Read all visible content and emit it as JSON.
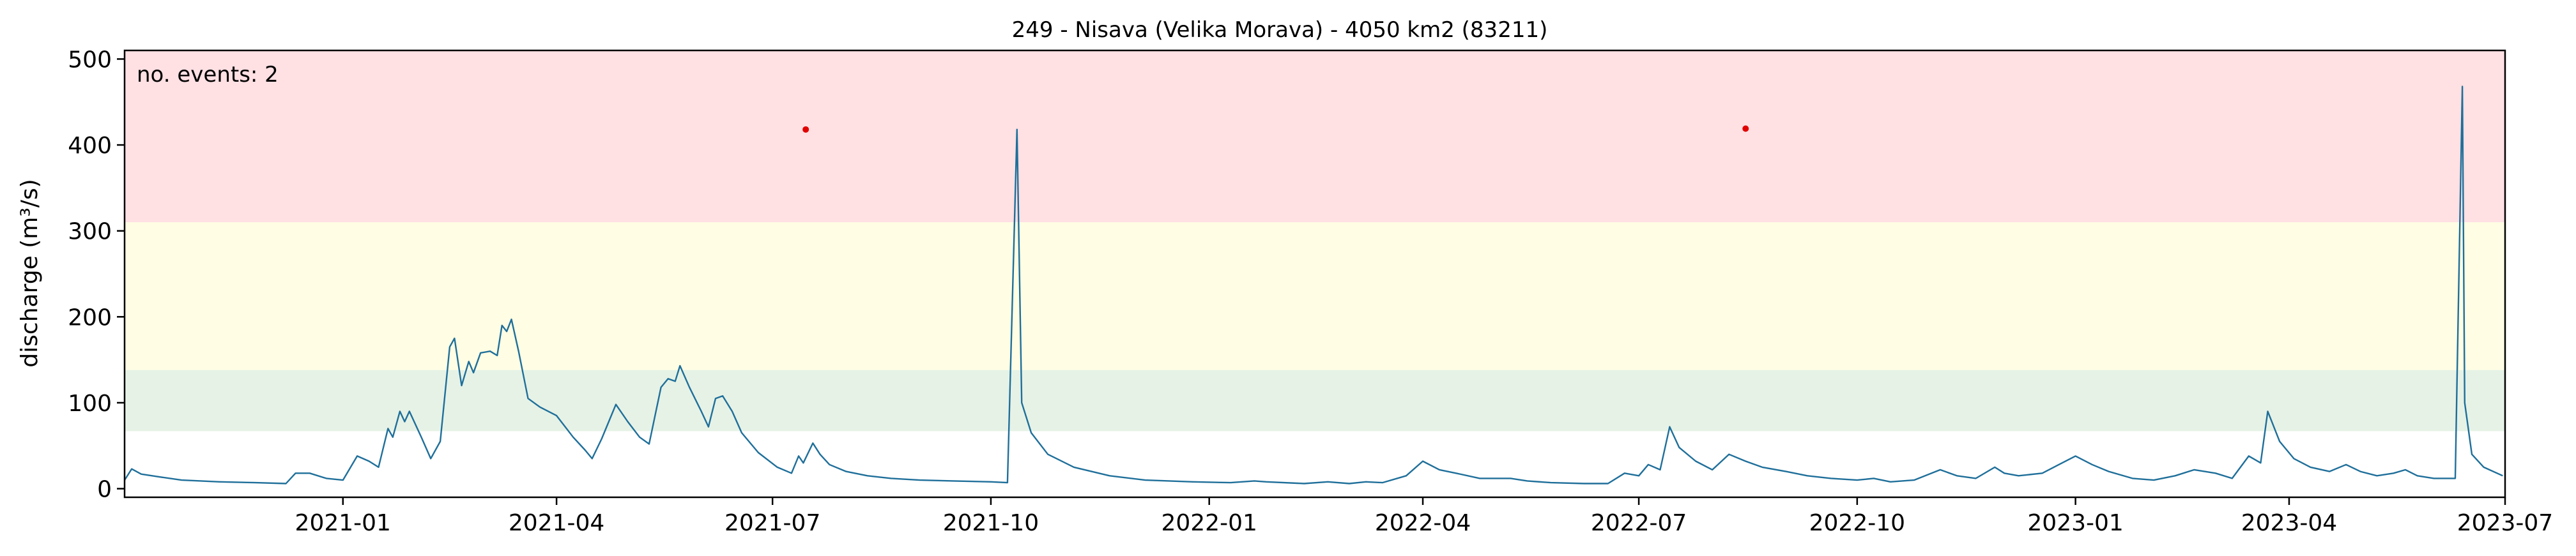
{
  "chart_data": {
    "type": "line",
    "title": "249 - Nisava (Velika Morava) - 4050 km2 (83211)",
    "xlabel": "",
    "ylabel": "discharge (m³/s)",
    "xlim": [
      "2020-10-01",
      "2023-07-01"
    ],
    "ylim": [
      -10,
      510
    ],
    "x_ticks": [
      "2021-01",
      "2021-04",
      "2021-07",
      "2021-10",
      "2022-01",
      "2022-04",
      "2022-07",
      "2022-10",
      "2023-01",
      "2023-04",
      "2023-07"
    ],
    "y_ticks": [
      0,
      100,
      200,
      300,
      400,
      500
    ],
    "grid": false,
    "annotation": "no. events: 2",
    "colors": {
      "line": "#1f6f9a",
      "event_marker": "#e00000",
      "annotation": "#cc0000",
      "band_high": "#ffe0e3",
      "band_mid": "#fffde3",
      "band_low": "#e6f2e6"
    },
    "bands": [
      {
        "from": 310,
        "to": 510,
        "color": "#ffe0e3"
      },
      {
        "from": 138,
        "to": 310,
        "color": "#fffde3"
      },
      {
        "from": 67,
        "to": 138,
        "color": "#e6f2e6"
      }
    ],
    "events": [
      {
        "x": "2021-07-15",
        "y": 418
      },
      {
        "x": "2022-08-15",
        "y": 419
      }
    ],
    "series": [
      {
        "points": [
          [
            "2020-10-01",
            10
          ],
          [
            "2020-10-04",
            23
          ],
          [
            "2020-10-08",
            17
          ],
          [
            "2020-10-15",
            14
          ],
          [
            "2020-10-25",
            10
          ],
          [
            "2020-11-10",
            8
          ],
          [
            "2020-11-25",
            7
          ],
          [
            "2020-12-08",
            6
          ],
          [
            "2020-12-12",
            18
          ],
          [
            "2020-12-18",
            18
          ],
          [
            "2020-12-25",
            12
          ],
          [
            "2021-01-01",
            10
          ],
          [
            "2021-01-07",
            38
          ],
          [
            "2021-01-12",
            32
          ],
          [
            "2021-01-16",
            25
          ],
          [
            "2021-01-20",
            70
          ],
          [
            "2021-01-22",
            60
          ],
          [
            "2021-01-25",
            90
          ],
          [
            "2021-01-27",
            78
          ],
          [
            "2021-01-29",
            90
          ],
          [
            "2021-02-03",
            60
          ],
          [
            "2021-02-07",
            35
          ],
          [
            "2021-02-11",
            55
          ],
          [
            "2021-02-15",
            165
          ],
          [
            "2021-02-17",
            175
          ],
          [
            "2021-02-20",
            120
          ],
          [
            "2021-02-23",
            148
          ],
          [
            "2021-02-25",
            135
          ],
          [
            "2021-02-28",
            158
          ],
          [
            "2021-03-04",
            160
          ],
          [
            "2021-03-07",
            155
          ],
          [
            "2021-03-09",
            190
          ],
          [
            "2021-03-11",
            183
          ],
          [
            "2021-03-13",
            197
          ],
          [
            "2021-03-16",
            160
          ],
          [
            "2021-03-20",
            105
          ],
          [
            "2021-03-25",
            95
          ],
          [
            "2021-04-01",
            85
          ],
          [
            "2021-04-08",
            60
          ],
          [
            "2021-04-13",
            45
          ],
          [
            "2021-04-16",
            35
          ],
          [
            "2021-04-20",
            58
          ],
          [
            "2021-04-26",
            98
          ],
          [
            "2021-05-01",
            78
          ],
          [
            "2021-05-06",
            60
          ],
          [
            "2021-05-10",
            52
          ],
          [
            "2021-05-15",
            118
          ],
          [
            "2021-05-18",
            128
          ],
          [
            "2021-05-21",
            125
          ],
          [
            "2021-05-23",
            143
          ],
          [
            "2021-05-27",
            118
          ],
          [
            "2021-06-01",
            90
          ],
          [
            "2021-06-04",
            72
          ],
          [
            "2021-06-07",
            105
          ],
          [
            "2021-06-10",
            108
          ],
          [
            "2021-06-14",
            90
          ],
          [
            "2021-06-18",
            65
          ],
          [
            "2021-06-25",
            42
          ],
          [
            "2021-07-03",
            25
          ],
          [
            "2021-07-09",
            18
          ],
          [
            "2021-07-12",
            38
          ],
          [
            "2021-07-14",
            30
          ],
          [
            "2021-07-18",
            53
          ],
          [
            "2021-07-21",
            40
          ],
          [
            "2021-07-25",
            28
          ],
          [
            "2021-08-01",
            20
          ],
          [
            "2021-08-10",
            15
          ],
          [
            "2021-08-20",
            12
          ],
          [
            "2021-09-01",
            10
          ],
          [
            "2021-09-15",
            9
          ],
          [
            "2021-10-01",
            8
          ],
          [
            "2021-10-08",
            7
          ],
          [
            "2021-10-12",
            418
          ],
          [
            "2021-10-14",
            100
          ],
          [
            "2021-10-18",
            65
          ],
          [
            "2021-10-25",
            40
          ],
          [
            "2021-11-05",
            25
          ],
          [
            "2021-11-20",
            15
          ],
          [
            "2021-12-05",
            10
          ],
          [
            "2021-12-25",
            8
          ],
          [
            "2022-01-10",
            7
          ],
          [
            "2022-01-20",
            9
          ],
          [
            "2022-01-25",
            8
          ],
          [
            "2022-02-10",
            6
          ],
          [
            "2022-02-20",
            8
          ],
          [
            "2022-03-01",
            6
          ],
          [
            "2022-03-08",
            8
          ],
          [
            "2022-03-15",
            7
          ],
          [
            "2022-03-25",
            15
          ],
          [
            "2022-04-01",
            32
          ],
          [
            "2022-04-08",
            22
          ],
          [
            "2022-04-15",
            18
          ],
          [
            "2022-04-25",
            12
          ],
          [
            "2022-05-08",
            12
          ],
          [
            "2022-05-15",
            9
          ],
          [
            "2022-05-25",
            7
          ],
          [
            "2022-06-08",
            6
          ],
          [
            "2022-06-18",
            6
          ],
          [
            "2022-06-25",
            18
          ],
          [
            "2022-07-01",
            15
          ],
          [
            "2022-07-05",
            28
          ],
          [
            "2022-07-10",
            22
          ],
          [
            "2022-07-14",
            72
          ],
          [
            "2022-07-18",
            48
          ],
          [
            "2022-07-25",
            32
          ],
          [
            "2022-08-01",
            22
          ],
          [
            "2022-08-08",
            40
          ],
          [
            "2022-08-15",
            32
          ],
          [
            "2022-08-22",
            25
          ],
          [
            "2022-09-01",
            20
          ],
          [
            "2022-09-10",
            15
          ],
          [
            "2022-09-20",
            12
          ],
          [
            "2022-10-01",
            10
          ],
          [
            "2022-10-08",
            12
          ],
          [
            "2022-10-15",
            8
          ],
          [
            "2022-10-25",
            10
          ],
          [
            "2022-11-05",
            22
          ],
          [
            "2022-11-12",
            15
          ],
          [
            "2022-11-20",
            12
          ],
          [
            "2022-11-28",
            25
          ],
          [
            "2022-12-02",
            18
          ],
          [
            "2022-12-08",
            15
          ],
          [
            "2022-12-18",
            18
          ],
          [
            "2022-12-25",
            28
          ],
          [
            "2023-01-01",
            38
          ],
          [
            "2023-01-08",
            28
          ],
          [
            "2023-01-15",
            20
          ],
          [
            "2023-01-25",
            12
          ],
          [
            "2023-02-03",
            10
          ],
          [
            "2023-02-12",
            15
          ],
          [
            "2023-02-20",
            22
          ],
          [
            "2023-03-01",
            18
          ],
          [
            "2023-03-08",
            12
          ],
          [
            "2023-03-15",
            38
          ],
          [
            "2023-03-20",
            30
          ],
          [
            "2023-03-23",
            90
          ],
          [
            "2023-03-28",
            55
          ],
          [
            "2023-04-03",
            35
          ],
          [
            "2023-04-10",
            25
          ],
          [
            "2023-04-18",
            20
          ],
          [
            "2023-04-25",
            28
          ],
          [
            "2023-05-01",
            20
          ],
          [
            "2023-05-08",
            15
          ],
          [
            "2023-05-15",
            18
          ],
          [
            "2023-05-20",
            22
          ],
          [
            "2023-05-25",
            15
          ],
          [
            "2023-06-01",
            12
          ],
          [
            "2023-06-10",
            12
          ],
          [
            "2023-06-13",
            468
          ],
          [
            "2023-06-14",
            100
          ],
          [
            "2023-06-17",
            40
          ],
          [
            "2023-06-22",
            25
          ],
          [
            "2023-06-30",
            15
          ]
        ]
      }
    ]
  }
}
